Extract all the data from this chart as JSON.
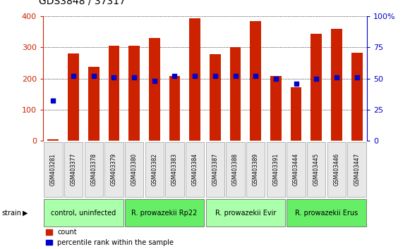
{
  "title": "GDS3848 / 37317",
  "samples": [
    "GSM403281",
    "GSM403377",
    "GSM403378",
    "GSM403379",
    "GSM403380",
    "GSM403382",
    "GSM403383",
    "GSM403384",
    "GSM403387",
    "GSM403388",
    "GSM403389",
    "GSM403391",
    "GSM403444",
    "GSM403445",
    "GSM403446",
    "GSM403447"
  ],
  "counts": [
    5,
    280,
    237,
    305,
    305,
    330,
    208,
    393,
    278,
    300,
    385,
    208,
    172,
    343,
    360,
    283
  ],
  "percentiles": [
    32,
    52,
    52,
    51,
    51,
    48,
    52,
    52,
    52,
    52,
    52,
    50,
    46,
    50,
    51,
    51
  ],
  "groups": [
    {
      "label": "control, uninfected",
      "start": 0,
      "end": 4,
      "color": "#aaffaa"
    },
    {
      "label": "R. prowazekii Rp22",
      "start": 4,
      "end": 8,
      "color": "#66ee66"
    },
    {
      "label": "R. prowazekii Evir",
      "start": 8,
      "end": 12,
      "color": "#aaffaa"
    },
    {
      "label": "R. prowazekii Erus",
      "start": 12,
      "end": 16,
      "color": "#66ee66"
    }
  ],
  "bar_color": "#cc2200",
  "dot_color": "#0000cc",
  "left_ylim": [
    0,
    400
  ],
  "right_ylim": [
    0,
    100
  ],
  "left_yticks": [
    0,
    100,
    200,
    300,
    400
  ],
  "right_yticks": [
    0,
    25,
    50,
    75,
    100
  ],
  "right_yticklabels": [
    "0",
    "25",
    "50",
    "75",
    "100%"
  ],
  "background_color": "#ffffff",
  "left_axis_color": "#cc2200",
  "right_axis_color": "#0000cc",
  "bar_width": 0.55
}
